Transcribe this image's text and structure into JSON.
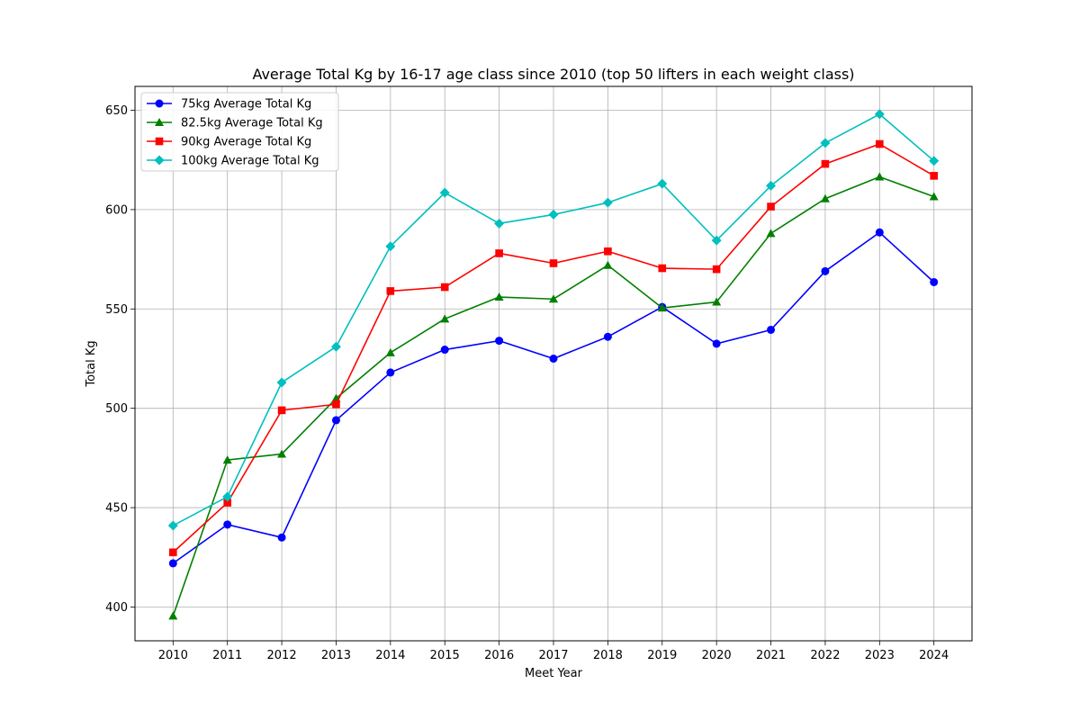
{
  "chart_data": {
    "type": "line",
    "title": "Average Total Kg by 16-17 age class since 2010 (top 50 lifters in each weight class)",
    "xlabel": "Meet Year",
    "ylabel": "Total Kg",
    "x": [
      2010,
      2011,
      2012,
      2013,
      2014,
      2015,
      2016,
      2017,
      2018,
      2019,
      2020,
      2021,
      2022,
      2023,
      2024
    ],
    "x_ticks": [
      "2010",
      "2011",
      "2012",
      "2013",
      "2014",
      "2015",
      "2016",
      "2017",
      "2018",
      "2019",
      "2020",
      "2021",
      "2022",
      "2023",
      "2024"
    ],
    "ylim": [
      383,
      662
    ],
    "y_ticks": [
      "400",
      "450",
      "500",
      "550",
      "600",
      "650"
    ],
    "grid": true,
    "legend_position": "top-left",
    "series": [
      {
        "name": "75kg Average Total Kg",
        "color": "#0000ff",
        "marker": "circle",
        "values": [
          422,
          441.5,
          435,
          494,
          518,
          529.5,
          534,
          525,
          536,
          551,
          532.5,
          539.5,
          569,
          588.5,
          563.5
        ]
      },
      {
        "name": "82.5kg Average Total Kg",
        "color": "#008000",
        "marker": "triangle",
        "values": [
          395.5,
          474,
          477,
          505,
          528,
          545,
          556,
          555,
          572,
          550.5,
          553.5,
          588,
          605.5,
          616.5,
          606.5
        ]
      },
      {
        "name": "90kg Average Total Kg",
        "color": "#ff0000",
        "marker": "square",
        "values": [
          427.5,
          452.5,
          499,
          502,
          559,
          561,
          578,
          573,
          579,
          570.5,
          570,
          601.5,
          623,
          633,
          617
        ]
      },
      {
        "name": "100kg Average Total Kg",
        "color": "#00bfbf",
        "marker": "diamond",
        "values": [
          441,
          455.5,
          513,
          531,
          581.5,
          608.5,
          593,
          597.5,
          603.5,
          613,
          584.5,
          612,
          633.5,
          648,
          624.5
        ]
      }
    ]
  }
}
